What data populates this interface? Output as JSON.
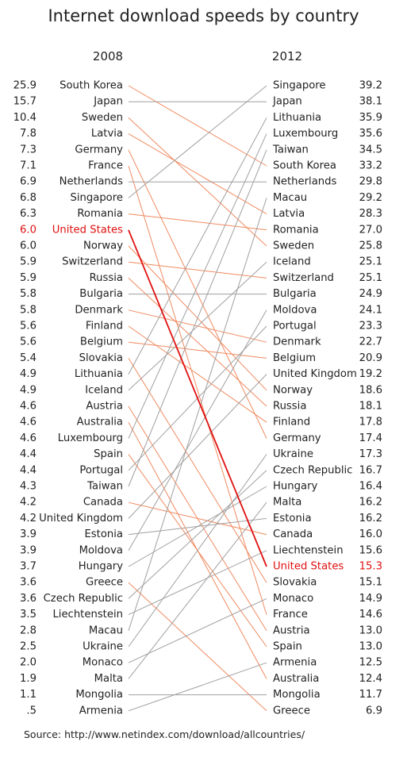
{
  "chart_data": {
    "type": "line",
    "title": "Internet download speeds by country",
    "left_year": "2008",
    "right_year": "2012",
    "highlight_country": "United States",
    "colors": {
      "up": "#a0a0a0",
      "down": "#f08a60",
      "highlight": "#e01010",
      "text": "#222222"
    },
    "left": [
      {
        "country": "South Korea",
        "value": "25.9"
      },
      {
        "country": "Japan",
        "value": "15.7"
      },
      {
        "country": "Sweden",
        "value": "10.4"
      },
      {
        "country": "Latvia",
        "value": "7.8"
      },
      {
        "country": "Germany",
        "value": "7.3"
      },
      {
        "country": "France",
        "value": "7.1"
      },
      {
        "country": "Netherlands",
        "value": "6.9"
      },
      {
        "country": "Singapore",
        "value": "6.8"
      },
      {
        "country": "Romania",
        "value": "6.3"
      },
      {
        "country": "United States",
        "value": "6.0"
      },
      {
        "country": "Norway",
        "value": "6.0"
      },
      {
        "country": "Switzerland",
        "value": "5.9"
      },
      {
        "country": "Russia",
        "value": "5.9"
      },
      {
        "country": "Bulgaria",
        "value": "5.8"
      },
      {
        "country": "Denmark",
        "value": "5.8"
      },
      {
        "country": "Finland",
        "value": "5.6"
      },
      {
        "country": "Belgium",
        "value": "5.6"
      },
      {
        "country": "Slovakia",
        "value": "5.4"
      },
      {
        "country": "Lithuania",
        "value": "4.9"
      },
      {
        "country": "Iceland",
        "value": "4.9"
      },
      {
        "country": "Austria",
        "value": "4.6"
      },
      {
        "country": "Australia",
        "value": "4.6"
      },
      {
        "country": "Luxembourg",
        "value": "4.6"
      },
      {
        "country": "Spain",
        "value": "4.4"
      },
      {
        "country": "Portugal",
        "value": "4.4"
      },
      {
        "country": "Taiwan",
        "value": "4.3"
      },
      {
        "country": "Canada",
        "value": "4.2"
      },
      {
        "country": "United Kingdom",
        "value": "4.2"
      },
      {
        "country": "Estonia",
        "value": "3.9"
      },
      {
        "country": "Moldova",
        "value": "3.9"
      },
      {
        "country": "Hungary",
        "value": "3.7"
      },
      {
        "country": "Greece",
        "value": "3.6"
      },
      {
        "country": "Czech Republic",
        "value": "3.6"
      },
      {
        "country": "Liechtenstein",
        "value": "3.5"
      },
      {
        "country": "Macau",
        "value": "2.8"
      },
      {
        "country": "Ukraine",
        "value": "2.5"
      },
      {
        "country": "Monaco",
        "value": "2.0"
      },
      {
        "country": "Malta",
        "value": "1.9"
      },
      {
        "country": "Mongolia",
        "value": "1.1"
      },
      {
        "country": "Armenia",
        "value": ".5"
      }
    ],
    "right": [
      {
        "country": "Singapore",
        "value": "39.2"
      },
      {
        "country": "Japan",
        "value": "38.1"
      },
      {
        "country": "Lithuania",
        "value": "35.9"
      },
      {
        "country": "Luxembourg",
        "value": "35.6"
      },
      {
        "country": "Taiwan",
        "value": "34.5"
      },
      {
        "country": "South Korea",
        "value": "33.2"
      },
      {
        "country": "Netherlands",
        "value": "29.8"
      },
      {
        "country": "Macau",
        "value": "29.2"
      },
      {
        "country": "Latvia",
        "value": "28.3"
      },
      {
        "country": "Romania",
        "value": "27.0"
      },
      {
        "country": "Sweden",
        "value": "25.8"
      },
      {
        "country": "Iceland",
        "value": "25.1"
      },
      {
        "country": "Switzerland",
        "value": "25.1"
      },
      {
        "country": "Bulgaria",
        "value": "24.9"
      },
      {
        "country": "Moldova",
        "value": "24.1"
      },
      {
        "country": "Portugal",
        "value": "23.3"
      },
      {
        "country": "Denmark",
        "value": "22.7"
      },
      {
        "country": "Belgium",
        "value": "20.9"
      },
      {
        "country": "United Kingdom",
        "value": "19.2"
      },
      {
        "country": "Norway",
        "value": "18.6"
      },
      {
        "country": "Russia",
        "value": "18.1"
      },
      {
        "country": "Finland",
        "value": "17.8"
      },
      {
        "country": "Germany",
        "value": "17.4"
      },
      {
        "country": "Ukraine",
        "value": "17.3"
      },
      {
        "country": "Czech Republic",
        "value": "16.7"
      },
      {
        "country": "Hungary",
        "value": "16.4"
      },
      {
        "country": "Malta",
        "value": "16.2"
      },
      {
        "country": "Estonia",
        "value": "16.2"
      },
      {
        "country": "Canada",
        "value": "16.0"
      },
      {
        "country": "Liechtenstein",
        "value": "15.6"
      },
      {
        "country": "United States",
        "value": "15.3"
      },
      {
        "country": "Slovakia",
        "value": "15.1"
      },
      {
        "country": "Monaco",
        "value": "14.9"
      },
      {
        "country": "France",
        "value": "14.6"
      },
      {
        "country": "Austria",
        "value": "13.0"
      },
      {
        "country": "Spain",
        "value": "13.0"
      },
      {
        "country": "Armenia",
        "value": "12.5"
      },
      {
        "country": "Australia",
        "value": "12.4"
      },
      {
        "country": "Mongolia",
        "value": "11.7"
      },
      {
        "country": "Greece",
        "value": "6.9"
      }
    ]
  },
  "source": "Source: http://www.netindex.com/download/allcountries/"
}
